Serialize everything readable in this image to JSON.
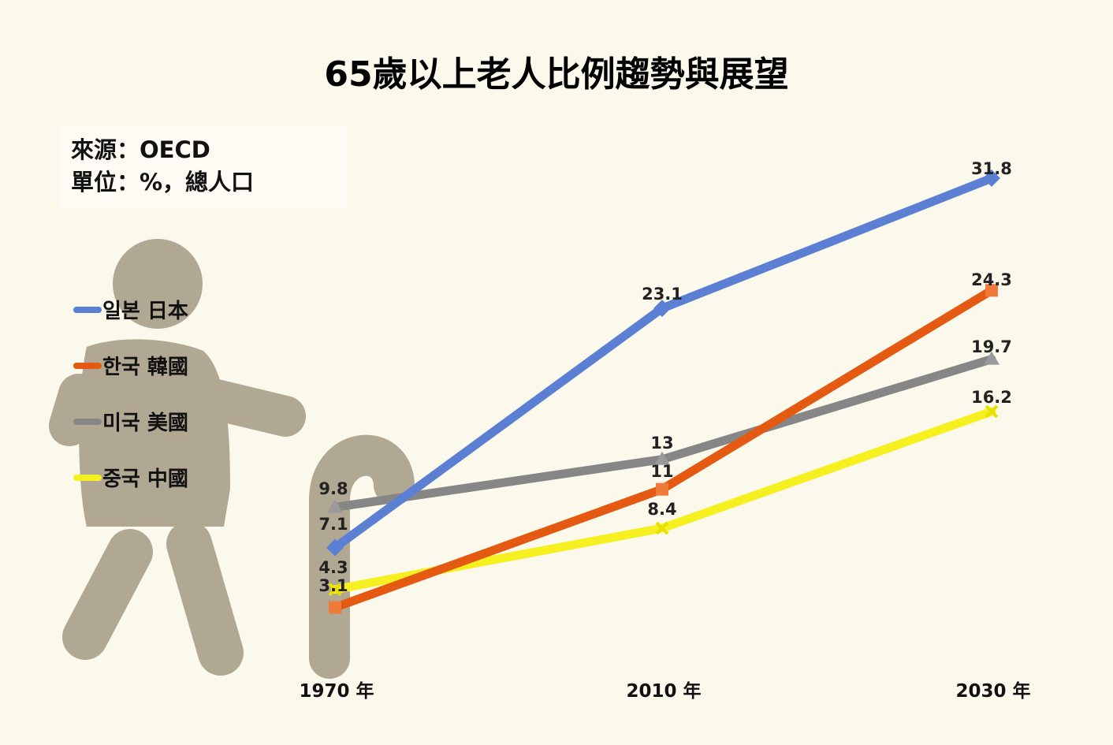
{
  "title": "65歲以上老人比例趨勢與展望",
  "source_line": "來源：OECD",
  "unit_line": "單位：%，總人口",
  "chart_data": {
    "type": "line",
    "title": "65歲以上老人比例趨勢與展望",
    "categories": [
      "1970 年",
      "2010 年",
      "2030 年"
    ],
    "series": [
      {
        "name": "일본 日本",
        "color": "#5b7fd3",
        "values": [
          7.1,
          23.1,
          31.8
        ]
      },
      {
        "name": "한국 韓國",
        "color": "#e45a12",
        "values": [
          3.1,
          11,
          24.3
        ]
      },
      {
        "name": "미국 美國",
        "color": "#868686",
        "values": [
          9.8,
          13,
          19.7
        ]
      },
      {
        "name": "중국 中國",
        "color": "#f6f020",
        "values": [
          4.3,
          8.4,
          16.2
        ]
      }
    ],
    "value_labels": [
      [
        "7.1",
        "23.1",
        "31.8"
      ],
      [
        "3.1",
        "11",
        "24.3"
      ],
      [
        "9.8",
        "13",
        "19.7"
      ],
      [
        "4.3",
        "8.4",
        "16.2"
      ]
    ],
    "legend_position": "left",
    "grid": false
  }
}
